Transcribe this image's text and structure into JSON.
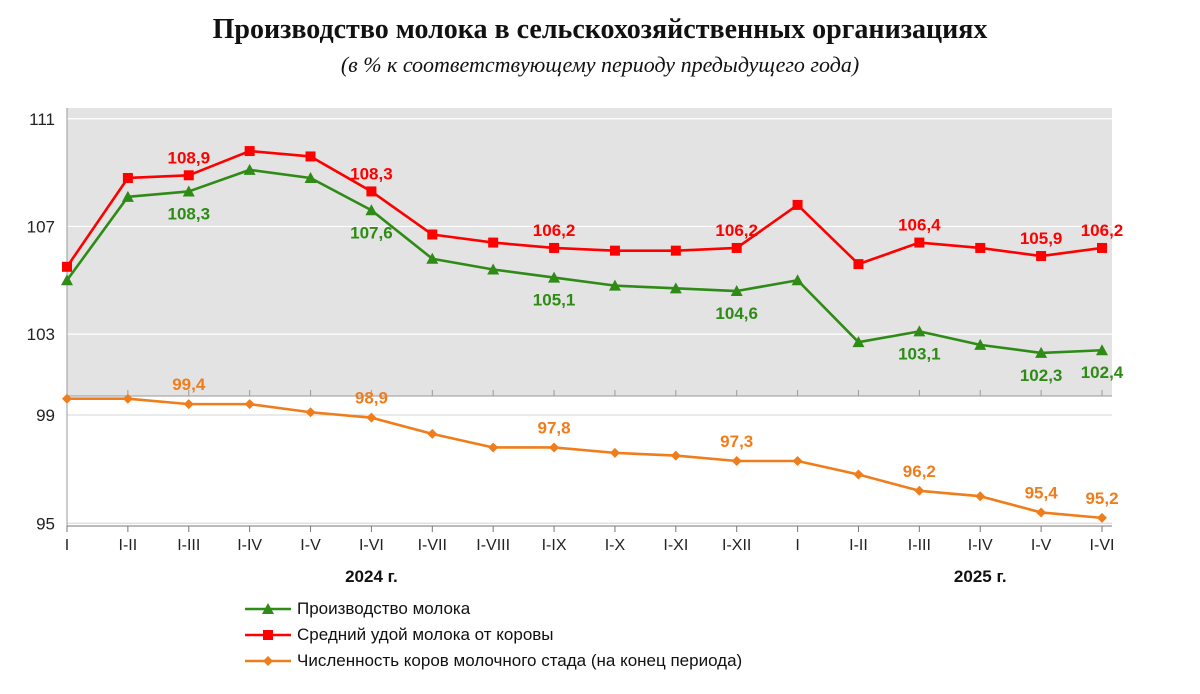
{
  "title": "Производство молока в сельскохозяйственных организациях",
  "subtitle": "(в % к соответствующему периоду предыдущего года)",
  "chart_data": {
    "type": "line",
    "categories": [
      "I",
      "I-II",
      "I-III",
      "I-IV",
      "I-V",
      "I-VI",
      "I-VII",
      "I-VIII",
      "I-IX",
      "I-X",
      "I-XI",
      "I-XII",
      "I",
      "I-II",
      "I-III",
      "I-IV",
      "I-V",
      "I-VI"
    ],
    "year_labels": [
      "2024 г.",
      "2025 г."
    ],
    "y_ticks_upper": [
      "103",
      "107",
      "111"
    ],
    "y_ticks_lower": [
      "95",
      "99"
    ],
    "ylim_upper": [
      100.7,
      111.4
    ],
    "ylim_lower": [
      94.9,
      99.7
    ],
    "grid": true,
    "legend_position": "bottom",
    "series": [
      {
        "name": "Производство молока",
        "color": "#2e8b16",
        "marker": "triangle",
        "panel": "upper",
        "values": [
          105.0,
          108.1,
          108.3,
          109.1,
          108.8,
          107.6,
          105.8,
          105.4,
          105.1,
          104.8,
          104.7,
          104.6,
          105.0,
          102.7,
          103.1,
          102.6,
          102.3,
          102.4
        ],
        "data_labels": [
          null,
          null,
          "108,3",
          null,
          null,
          "107,6",
          null,
          null,
          "105,1",
          null,
          null,
          "104,6",
          null,
          null,
          "103,1",
          null,
          "102,3",
          "102,4"
        ]
      },
      {
        "name": "Средний удой молока от коровы",
        "color": "#ff0000",
        "marker": "square",
        "panel": "upper",
        "values": [
          105.5,
          108.8,
          108.9,
          109.8,
          109.6,
          108.3,
          106.7,
          106.4,
          106.2,
          106.1,
          106.1,
          106.2,
          107.8,
          105.6,
          106.4,
          106.2,
          105.9,
          106.2
        ],
        "data_labels": [
          null,
          null,
          "108,9",
          null,
          null,
          "108,3",
          null,
          null,
          "106,2",
          null,
          null,
          "106,2",
          null,
          null,
          "106,4",
          null,
          "105,9",
          "106,2"
        ]
      },
      {
        "name": "Численность коров молочного стада (на конец периода)",
        "color": "#f07d1c",
        "marker": "diamond",
        "panel": "lower",
        "values": [
          99.6,
          99.6,
          99.4,
          99.4,
          99.1,
          98.9,
          98.3,
          97.8,
          97.8,
          97.6,
          97.5,
          97.3,
          97.3,
          96.8,
          96.2,
          96.0,
          95.4,
          95.2
        ],
        "data_labels": [
          null,
          null,
          "99,4",
          null,
          null,
          "98,9",
          null,
          null,
          "97,8",
          null,
          null,
          "97,3",
          null,
          null,
          "96,2",
          null,
          "95,4",
          "95,2"
        ]
      }
    ]
  }
}
